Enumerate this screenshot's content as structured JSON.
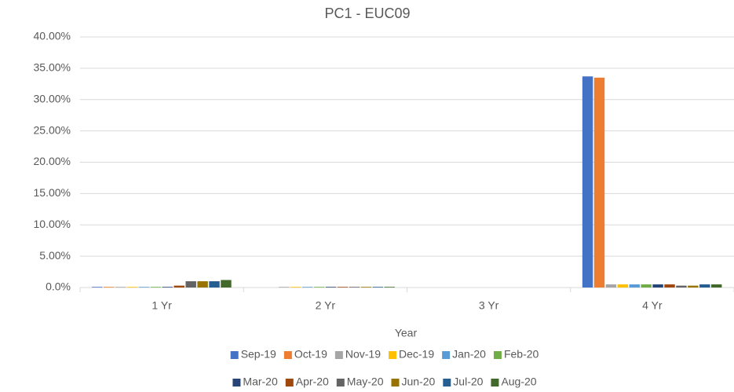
{
  "chart_data": {
    "type": "bar",
    "title": "PC1 - EUC09",
    "x_label": "Year",
    "categories": [
      "1 Yr",
      "2 Yr",
      "3 Yr",
      "4 Yr"
    ],
    "series": [
      {
        "name": "Sep-19",
        "color": "#4472c4",
        "values": [
          0.1,
          0,
          0,
          33.7
        ]
      },
      {
        "name": "Oct-19",
        "color": "#ed7d31",
        "values": [
          0.1,
          0,
          0,
          33.5
        ]
      },
      {
        "name": "Nov-19",
        "color": "#a5a5a5",
        "values": [
          0.1,
          0.1,
          0,
          0.5
        ]
      },
      {
        "name": "Dec-19",
        "color": "#ffc000",
        "values": [
          0.1,
          0.1,
          0,
          0.5
        ]
      },
      {
        "name": "Jan-20",
        "color": "#5b9bd5",
        "values": [
          0.1,
          0.1,
          0,
          0.5
        ]
      },
      {
        "name": "Feb-20",
        "color": "#70ad47",
        "values": [
          0.1,
          0.1,
          0,
          0.5
        ]
      },
      {
        "name": "Mar-20",
        "color": "#264478",
        "values": [
          0.1,
          0.1,
          0,
          0.5
        ]
      },
      {
        "name": "Apr-20",
        "color": "#9e480e",
        "values": [
          0.3,
          0.1,
          0,
          0.5
        ]
      },
      {
        "name": "May-20",
        "color": "#636363",
        "values": [
          1.0,
          0.1,
          0,
          0.3
        ]
      },
      {
        "name": "Jun-20",
        "color": "#997300",
        "values": [
          1.0,
          0.1,
          0,
          0.3
        ]
      },
      {
        "name": "Jul-20",
        "color": "#255e91",
        "values": [
          1.0,
          0.1,
          0,
          0.5
        ]
      },
      {
        "name": "Aug-20",
        "color": "#43682b",
        "values": [
          1.2,
          0.1,
          0,
          0.5
        ]
      }
    ],
    "ylim": [
      0,
      40
    ],
    "yticks": [
      {
        "value": 0,
        "label": "0.0%"
      },
      {
        "value": 5,
        "label": "5.00%"
      },
      {
        "value": 10,
        "label": "10.00%"
      },
      {
        "value": 15,
        "label": "15.00%"
      },
      {
        "value": 20,
        "label": "20.00%"
      },
      {
        "value": 25,
        "label": "25.00%"
      },
      {
        "value": 30,
        "label": "30.00%"
      },
      {
        "value": 35,
        "label": "35.00%"
      },
      {
        "value": 40,
        "label": "40.00%"
      }
    ],
    "grid": true,
    "legend": "bottom"
  }
}
